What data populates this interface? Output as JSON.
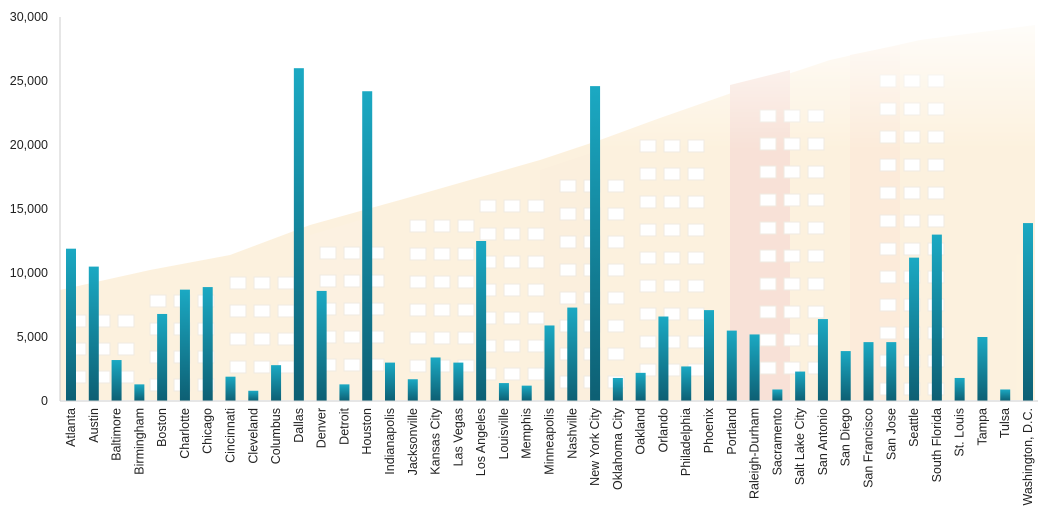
{
  "chart_data": {
    "type": "bar",
    "title": "",
    "xlabel": "",
    "ylabel": "",
    "ylim": [
      0,
      30000
    ],
    "yticks": [
      0,
      5000,
      10000,
      15000,
      20000,
      25000,
      30000
    ],
    "ytick_labels": [
      "0",
      "5,000",
      "10,000",
      "15,000",
      "20,000",
      "25,000",
      "30,000"
    ],
    "grid": false,
    "legend": "none",
    "bar_color_top": "#1ba9c3",
    "bar_color_bottom": "#0d5f73",
    "categories": [
      "Atlanta",
      "Austin",
      "Baltimore",
      "Birmingham",
      "Boston",
      "Charlotte",
      "Chicago",
      "Cincinnati",
      "Cleveland",
      "Columbus",
      "Dallas",
      "Denver",
      "Detroit",
      "Houston",
      "Indianapolis",
      "Jacksonville",
      "Kansas City",
      "Las Vegas",
      "Los Angeles",
      "Louisville",
      "Memphis",
      "Minneapolis",
      "Nashville",
      "New York City",
      "Oklahoma City",
      "Oakland",
      "Orlando",
      "Philadelphia",
      "Phoenix",
      "Portland",
      "Raleigh-Durham",
      "Sacramento",
      "Salt Lake City",
      "San Antonio",
      "San Diego",
      "San Francisco",
      "San Jose",
      "Seattle",
      "South Florida",
      "St. Louis",
      "Tampa",
      "Tulsa",
      "Washington, D.C."
    ],
    "values": [
      11900,
      10500,
      3200,
      1300,
      6800,
      8700,
      8900,
      1900,
      800,
      2800,
      26000,
      8600,
      1300,
      24200,
      3000,
      1700,
      3400,
      3000,
      12500,
      1400,
      1200,
      5900,
      7300,
      24600,
      1800,
      2200,
      6600,
      2700,
      7100,
      5500,
      5200,
      900,
      2300,
      6400,
      3900,
      4600,
      4600,
      11200,
      13000,
      1800,
      5000,
      900,
      13900
    ]
  }
}
